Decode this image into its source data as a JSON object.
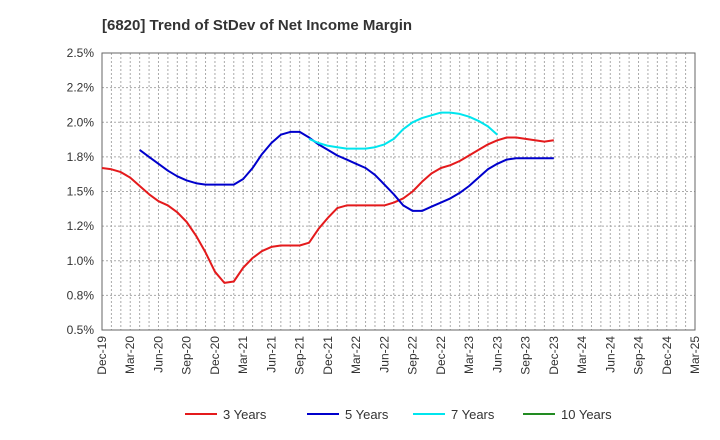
{
  "chart_data": {
    "type": "line",
    "title": "[6820]  Trend of StDev of Net Income Margin",
    "xlabel": "",
    "ylabel": "",
    "x_ticks": [
      "Dec-19",
      "Mar-20",
      "Jun-20",
      "Sep-20",
      "Dec-20",
      "Mar-21",
      "Jun-21",
      "Sep-21",
      "Dec-21",
      "Mar-22",
      "Jun-22",
      "Sep-22",
      "Dec-22",
      "Mar-23",
      "Jun-23",
      "Sep-23",
      "Dec-23",
      "Mar-24",
      "Jun-24",
      "Sep-24",
      "Dec-24",
      "Mar-25"
    ],
    "y_ticks": [
      "0.5%",
      "0.8%",
      "1.0%",
      "1.2%",
      "1.5%",
      "1.8%",
      "2.0%",
      "2.2%",
      "2.5%"
    ],
    "ylim": [
      0.5,
      2.5
    ],
    "grid": true,
    "legend_position": "bottom",
    "series": [
      {
        "name": "3 Years",
        "color": "#e41a1c",
        "values": [
          1.67,
          1.66,
          1.64,
          1.6,
          1.54,
          1.48,
          1.43,
          1.4,
          1.35,
          1.28,
          1.18,
          1.06,
          0.92,
          0.84,
          0.85,
          0.95,
          1.02,
          1.07,
          1.1,
          1.11,
          1.11,
          1.11,
          1.13,
          1.23,
          1.31,
          1.38,
          1.4,
          1.4,
          1.4,
          1.4,
          1.4,
          1.42,
          1.45,
          1.5,
          1.57,
          1.63,
          1.67,
          1.69,
          1.72,
          1.76,
          1.8,
          1.84,
          1.87,
          1.89,
          1.89,
          1.88,
          1.87,
          1.86,
          1.87
        ]
      },
      {
        "name": "5 Years",
        "color": "#0000cc",
        "values": [
          null,
          null,
          null,
          null,
          1.8,
          1.75,
          1.7,
          1.65,
          1.61,
          1.58,
          1.56,
          1.55,
          1.55,
          1.55,
          1.55,
          1.59,
          1.67,
          1.77,
          1.85,
          1.91,
          1.93,
          1.93,
          1.89,
          1.84,
          1.8,
          1.76,
          1.73,
          1.7,
          1.67,
          1.62,
          1.55,
          1.48,
          1.4,
          1.36,
          1.36,
          1.39,
          1.42,
          1.45,
          1.49,
          1.54,
          1.6,
          1.66,
          1.7,
          1.73,
          1.74,
          1.74,
          1.74,
          1.74,
          1.74
        ]
      },
      {
        "name": "7 Years",
        "color": "#00e5ee",
        "values": [
          null,
          null,
          null,
          null,
          null,
          null,
          null,
          null,
          null,
          null,
          null,
          null,
          null,
          null,
          null,
          null,
          null,
          null,
          null,
          null,
          null,
          null,
          1.88,
          1.85,
          1.83,
          1.82,
          1.81,
          1.81,
          1.81,
          1.82,
          1.84,
          1.88,
          1.95,
          2.0,
          2.03,
          2.05,
          2.07,
          2.07,
          2.06,
          2.04,
          2.01,
          1.97,
          1.91
        ]
      },
      {
        "name": "10 Years",
        "color": "#228b22",
        "values": []
      }
    ]
  }
}
